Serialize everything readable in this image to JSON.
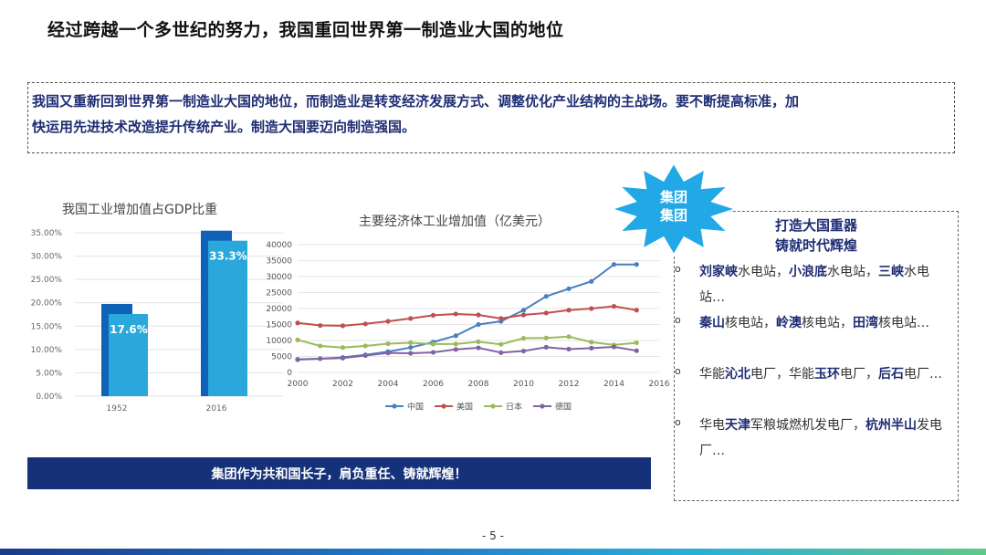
{
  "title": "经过跨越一个多世纪的努力，我国重回世界第一制造业大国的地位",
  "intro": {
    "line1": "我国又重新回到世界第一制造业大国的地位，而制造业是转变经济发展方式、调整优化产业结构的主战场。要不断提高标准，加",
    "line2": "快运用先进技术改造提升传统产业。制造大国要迈向制造强国。"
  },
  "chart_data": [
    {
      "type": "bar",
      "title": "我国工业增加值占GDP比重",
      "categories": [
        "1952",
        "2016"
      ],
      "values": [
        17.6,
        33.3
      ],
      "value_labels": [
        "17.6%",
        "33.3%"
      ],
      "yticks": [
        "0.00%",
        "5.00%",
        "10.00%",
        "15.00%",
        "20.00%",
        "25.00%",
        "30.00%",
        "35.00%"
      ],
      "ylim": [
        0,
        35
      ],
      "grid": true,
      "colors": {
        "front": "#2aa8dc",
        "back": "#0f62b8"
      }
    },
    {
      "type": "line",
      "title": "主要经济体工业增加值（亿美元）",
      "x": [
        2000,
        2001,
        2002,
        2003,
        2004,
        2005,
        2006,
        2007,
        2008,
        2009,
        2010,
        2011,
        2012,
        2013,
        2014,
        2015
      ],
      "xticks": [
        "2000",
        "2002",
        "2004",
        "2006",
        "2008",
        "2010",
        "2012",
        "2014",
        "2016"
      ],
      "yticks": [
        "0",
        "5000",
        "10000",
        "15000",
        "20000",
        "25000",
        "30000",
        "35000",
        "40000"
      ],
      "xlim": [
        2000,
        2016
      ],
      "ylim": [
        0,
        40000
      ],
      "grid": true,
      "legend": "bottom",
      "series": [
        {
          "name": "中国",
          "color": "#4a7fc0",
          "values": [
            4000,
            4300,
            4700,
            5500,
            6500,
            7800,
            9500,
            11500,
            15000,
            16000,
            19500,
            23800,
            26200,
            28500,
            33800,
            33800
          ]
        },
        {
          "name": "美国",
          "color": "#c0504d",
          "values": [
            15500,
            14700,
            14600,
            15200,
            16000,
            16900,
            17900,
            18300,
            18000,
            16900,
            18000,
            18600,
            19500,
            20000,
            20700,
            19500
          ]
        },
        {
          "name": "日本",
          "color": "#9bbb59",
          "values": [
            10200,
            8300,
            7800,
            8300,
            9000,
            9300,
            8900,
            8900,
            9600,
            8800,
            10700,
            10800,
            11200,
            9500,
            8600,
            9300
          ]
        },
        {
          "name": "德国",
          "color": "#8064a2",
          "values": [
            4100,
            4300,
            4500,
            5300,
            6100,
            6000,
            6300,
            7200,
            7700,
            6200,
            6700,
            7900,
            7300,
            7600,
            8000,
            6800
          ]
        }
      ]
    }
  ],
  "banner": "集团作为共和国长子，肩负重任、铸就辉煌！",
  "badge": {
    "line1": "集团",
    "line2": "集团",
    "color": "#22a8e6"
  },
  "right_panel": {
    "heading1": "打造大国重器",
    "heading2": "铸就时代辉煌",
    "items": [
      [
        {
          "t": "刘家峡",
          "b": true
        },
        {
          "t": "水电站，",
          "b": false
        },
        {
          "t": "小浪底",
          "b": true
        },
        {
          "t": "水电站，",
          "b": false
        },
        {
          "t": "三峡",
          "b": true
        },
        {
          "t": "水电站…",
          "b": false
        }
      ],
      [
        {
          "t": "秦山",
          "b": true
        },
        {
          "t": "核电站，",
          "b": false
        },
        {
          "t": "岭澳",
          "b": true
        },
        {
          "t": "核电站，",
          "b": false
        },
        {
          "t": "田湾",
          "b": true
        },
        {
          "t": "核电站…",
          "b": false
        }
      ],
      [
        {
          "t": "华能",
          "b": false
        },
        {
          "t": "沁北",
          "b": true
        },
        {
          "t": "电厂，华能",
          "b": false
        },
        {
          "t": "玉环",
          "b": true
        },
        {
          "t": "电厂，",
          "b": false
        },
        {
          "t": "后石",
          "b": true
        },
        {
          "t": "电厂…",
          "b": false
        }
      ],
      [
        {
          "t": "华电",
          "b": false
        },
        {
          "t": "天津",
          "b": true
        },
        {
          "t": "军粮城燃机发电厂，",
          "b": false
        },
        {
          "t": "杭州半山",
          "b": true
        },
        {
          "t": "发电厂…",
          "b": false
        }
      ]
    ],
    "bullet": "o"
  },
  "page_number": "- 5 -"
}
